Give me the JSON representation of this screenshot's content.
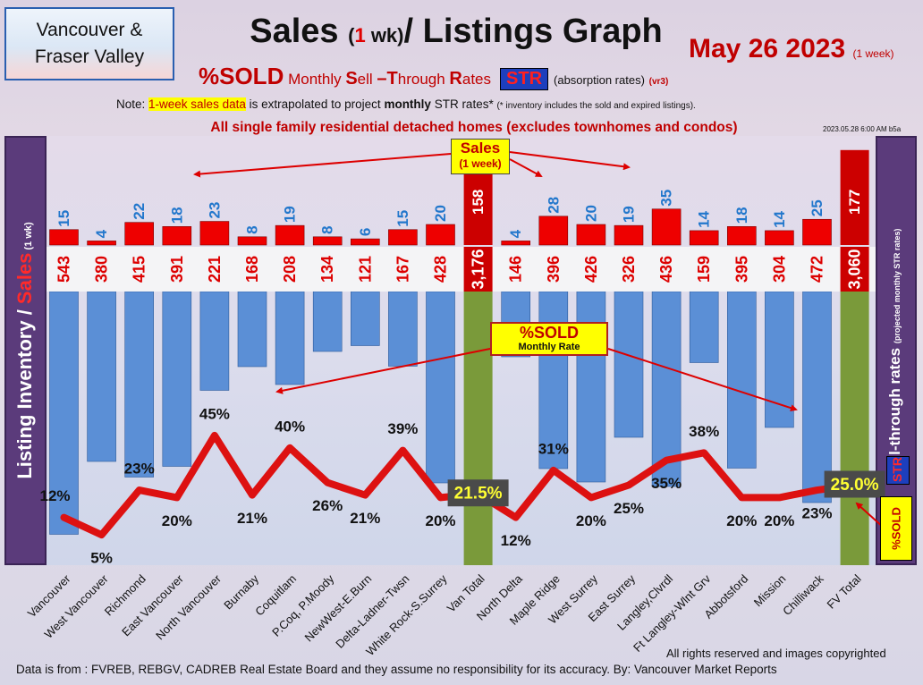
{
  "region_label": "Vancouver &\nFraser Valley",
  "title": {
    "part1": "Sales ",
    "paren_open": "(",
    "one": "1",
    "wk": " wk)",
    "part2": "/ Listings Graph"
  },
  "date": {
    "main": "May 26  2023",
    "note": "(1 week)"
  },
  "subtitle": {
    "pct_sold": "%SOLD",
    "monthly": "Monthly ",
    "s": "S",
    "ell": "ell ",
    "t": "–T",
    "hrough": "hrough ",
    "r": "R",
    "ates": "ates",
    "str": "STR",
    "absorption": "(absorption rates)",
    "version": "(vr3)"
  },
  "note": {
    "prefix": "Note: ",
    "highlight": "1-week sales data",
    "middle": " is extrapolated to project ",
    "bold": "monthly",
    "suffix": " STR rates* ",
    "small": "(* inventory includes the sold and expired listings)."
  },
  "homes_line": "All single family residential detached homes (excludes townhomes and condos)",
  "timestamp": "2023.05.28 6:00 AM b5a",
  "left_axis": {
    "part1": "Listing Inventory / ",
    "sales": "Sales",
    "wk": " (1 wk)"
  },
  "right_axis": {
    "main": "Sell-through rates",
    "small": "(projected monthly STR rates)"
  },
  "right_badges": {
    "str": "STR",
    "pct_sold": "%SOLD"
  },
  "callouts": {
    "sales_big": "Sales",
    "sales_small": "(1 week)",
    "sold_big": "%SOLD",
    "sold_small": "Monthly Rate"
  },
  "footer": {
    "rights": "All rights reserved and  images copyrighted",
    "source": "Data is from : FVREB, REBGV, CADREB Real Estate Board and they assume no responsibility for its accuracy. By: Vancouver Market Reports"
  },
  "colors": {
    "sales": "#ee0000",
    "inventory": "#5b8fd6",
    "total": "#7a9a3a",
    "total_sales": "#cc0000",
    "line": "#dd1111"
  },
  "chart_data": {
    "type": "bar",
    "categories": [
      "Vancouver",
      "West Vancouver",
      "Richmond",
      "East Vancouver",
      "North Vancouver",
      "Burnaby",
      "Coquitlam",
      "P.Coq, P.Moody",
      "NewWest-E.Burn",
      "Delta-Ladner-Twsn",
      "White Rock-S.Surrey",
      "Van Total",
      "North Delta",
      "Maple Ridge",
      "West Surrey",
      "East Surrey",
      "Langley,Clvrdl",
      "Ft Langley-Wlnt Grv",
      "Abbotsford",
      "Mission",
      "Chilliwack",
      "FV Total"
    ],
    "series": [
      {
        "name": "Sales",
        "values": [
          15,
          4,
          22,
          18,
          23,
          8,
          19,
          8,
          6,
          15,
          20,
          158,
          4,
          28,
          20,
          19,
          35,
          14,
          18,
          14,
          25,
          177
        ]
      },
      {
        "name": "Listing Inventory",
        "values": [
          543,
          380,
          415,
          391,
          221,
          168,
          208,
          134,
          121,
          167,
          428,
          3176,
          146,
          396,
          426,
          326,
          436,
          159,
          395,
          304,
          472,
          3060
        ]
      }
    ],
    "sold_rate": {
      "values": [
        12,
        5,
        23,
        20,
        45,
        21,
        40,
        26,
        21,
        39,
        20,
        21.5,
        12,
        31,
        20,
        25,
        35,
        38,
        20,
        20,
        23,
        25.0
      ],
      "labels": [
        "12%",
        "5%",
        "23%",
        "20%",
        "45%",
        "21%",
        "40%",
        "26%",
        "21%",
        "39%",
        "20%",
        "21.5%",
        "12%",
        "31%",
        "20%",
        "25%",
        "35%",
        "38%",
        "20%",
        "20%",
        "23%",
        "25.0%"
      ]
    },
    "inventory_labels": [
      "543",
      "380",
      "415",
      "391",
      "221",
      "168",
      "208",
      "134",
      "121",
      "167",
      "428",
      "3,176",
      "146",
      "396",
      "426",
      "326",
      "436",
      "159",
      "395",
      "304",
      "472",
      "3,060"
    ],
    "sales_labels": [
      "15",
      "4",
      "22",
      "18",
      "23",
      "8",
      "19",
      "8",
      "6",
      "15",
      "20",
      "158",
      "4",
      "28",
      "20",
      "19",
      "35",
      "14",
      "18",
      "14",
      "25",
      "177"
    ],
    "total_indices": [
      11,
      21
    ],
    "xlabel": "",
    "ylabel": ""
  }
}
